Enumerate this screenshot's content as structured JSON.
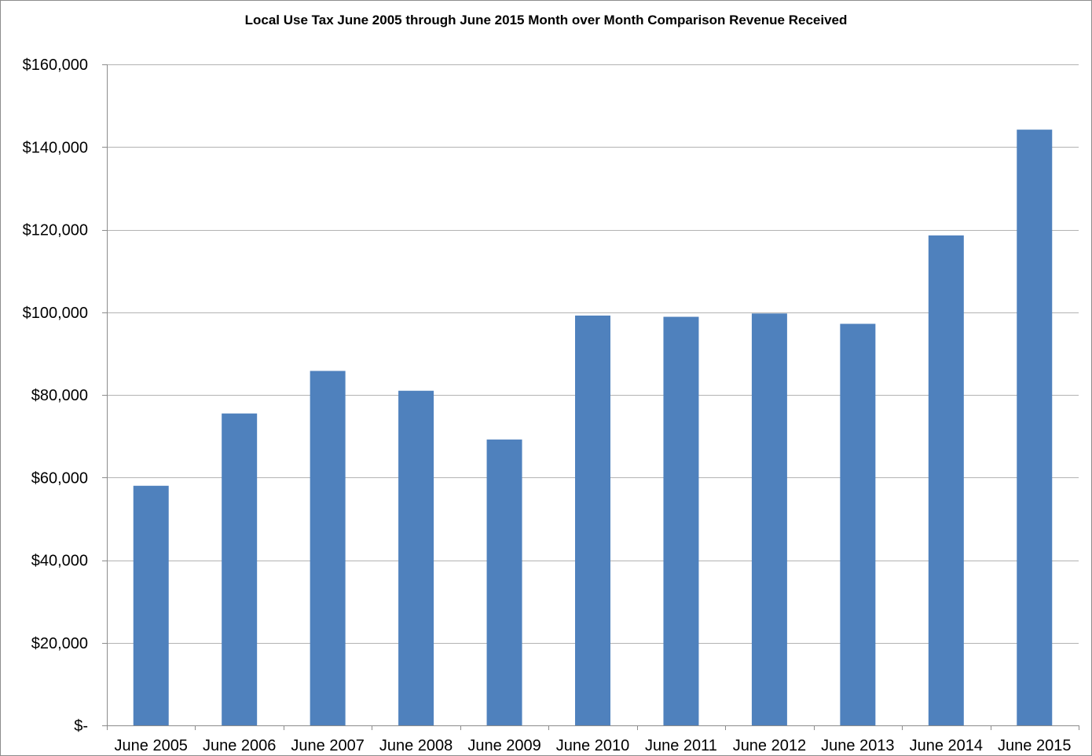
{
  "chart_data": {
    "type": "bar",
    "title": "Local Use Tax June 2005 through June 2015 Month over Month Comparison Revenue Received",
    "xlabel": "",
    "ylabel": "",
    "categories": [
      "June 2005",
      "June 2006",
      "June 2007",
      "June 2008",
      "June 2009",
      "June 2010",
      "June 2011",
      "June 2012",
      "June 2013",
      "June 2014",
      "June 2015"
    ],
    "values": [
      58000,
      75500,
      85800,
      81000,
      69200,
      99200,
      98900,
      99700,
      97200,
      118600,
      144200
    ],
    "ylim": [
      0,
      160000
    ],
    "yticks": [
      0,
      20000,
      40000,
      60000,
      80000,
      100000,
      120000,
      140000,
      160000
    ],
    "ytick_labels": [
      "$-",
      "$20,000",
      "$40,000",
      "$60,000",
      "$80,000",
      "$100,000",
      "$120,000",
      "$140,000",
      "$160,000"
    ],
    "grid": "horizontal",
    "legend": "none",
    "bar_color": "#4f81bd",
    "grid_color": "#b3b3b3",
    "axis_color": "#8c8c8c"
  }
}
